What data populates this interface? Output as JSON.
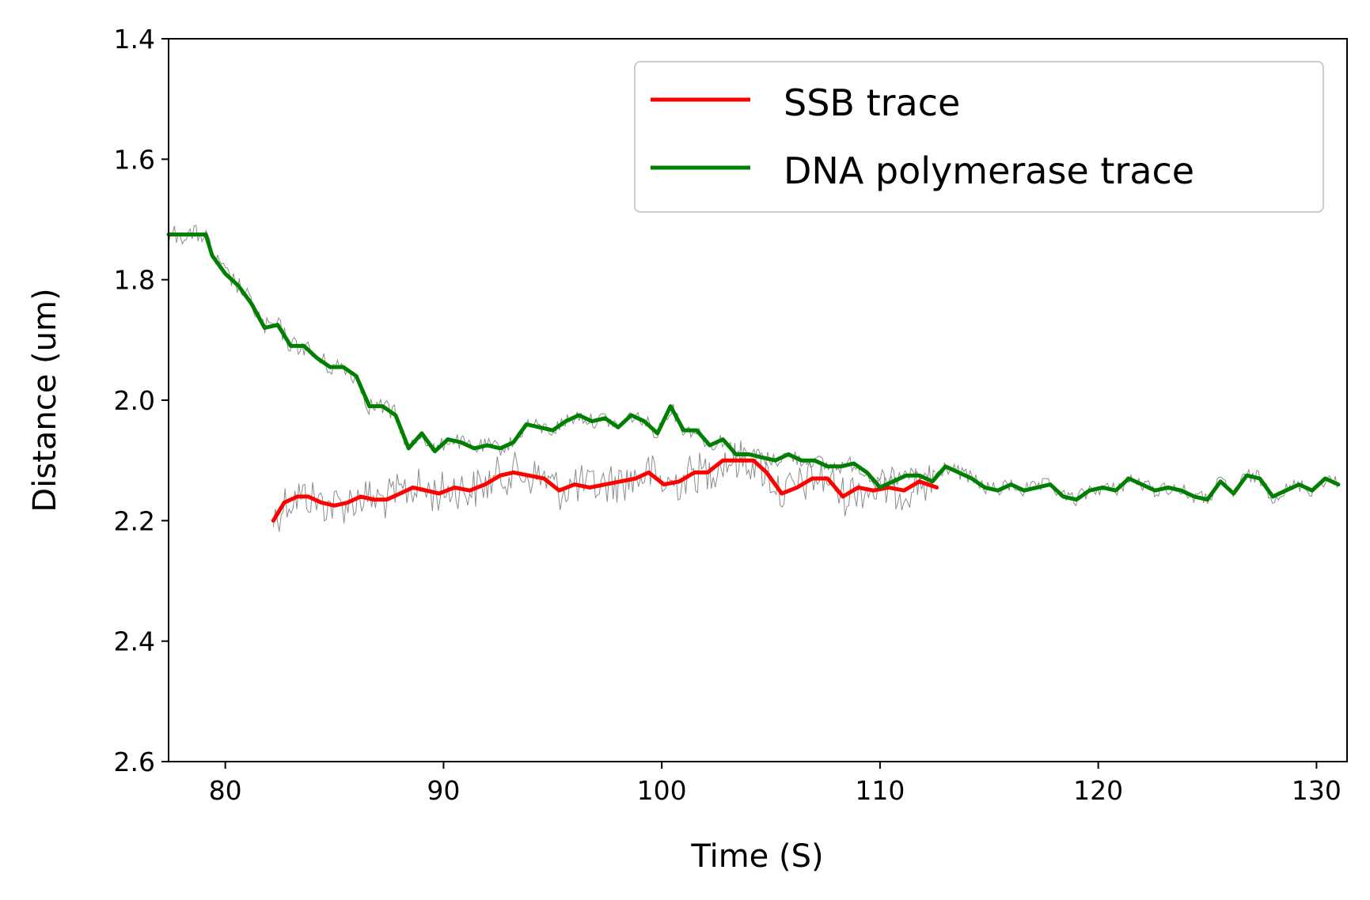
{
  "chart_data": {
    "type": "line",
    "title": "",
    "xlabel": "Time (S)",
    "ylabel": "Distance (um)",
    "xlim": [
      77.4,
      131.4
    ],
    "ylim": [
      2.6,
      1.4
    ],
    "y_inverted": true,
    "xticks": [
      80,
      90,
      100,
      110,
      120,
      130
    ],
    "xtick_labels": [
      "80",
      "90",
      "100",
      "110",
      "120",
      "130"
    ],
    "yticks": [
      1.4,
      1.6,
      1.8,
      2.0,
      2.2,
      2.4,
      2.6
    ],
    "ytick_labels": [
      "1.4",
      "1.6",
      "1.8",
      "2.0",
      "2.2",
      "2.4",
      "2.6"
    ],
    "grid": false,
    "legend_position": "top-right",
    "series": [
      {
        "name": "SSB trace",
        "color": "#ff0000",
        "x": [
          82.2,
          82.7,
          83.3,
          83.8,
          84.4,
          85.0,
          85.6,
          86.2,
          86.8,
          87.4,
          88.0,
          88.6,
          89.2,
          89.8,
          90.5,
          91.2,
          91.9,
          92.6,
          93.2,
          93.9,
          94.6,
          95.3,
          96.0,
          96.7,
          97.4,
          98.1,
          98.8,
          99.4,
          100.1,
          100.8,
          101.5,
          102.1,
          102.8,
          103.5,
          104.2,
          104.8,
          105.5,
          106.2,
          106.9,
          107.6,
          108.3,
          109.0,
          109.7,
          110.4,
          111.1,
          111.8,
          112.6
        ],
        "y": [
          2.2,
          2.17,
          2.16,
          2.16,
          2.17,
          2.175,
          2.17,
          2.16,
          2.165,
          2.165,
          2.155,
          2.145,
          2.15,
          2.155,
          2.145,
          2.15,
          2.14,
          2.125,
          2.12,
          2.125,
          2.13,
          2.15,
          2.14,
          2.145,
          2.14,
          2.135,
          2.13,
          2.12,
          2.14,
          2.135,
          2.12,
          2.12,
          2.1,
          2.1,
          2.1,
          2.12,
          2.155,
          2.145,
          2.13,
          2.13,
          2.16,
          2.145,
          2.15,
          2.145,
          2.15,
          2.135,
          2.145
        ]
      },
      {
        "name": "DNA polymerase trace",
        "color": "#008000",
        "x": [
          77.4,
          78.3,
          79.1,
          79.4,
          80.0,
          80.6,
          81.2,
          81.8,
          82.4,
          83.0,
          83.6,
          84.2,
          84.8,
          85.4,
          86.0,
          86.6,
          87.2,
          87.8,
          88.4,
          89.0,
          89.6,
          90.2,
          90.8,
          91.4,
          92.0,
          92.6,
          93.2,
          93.8,
          94.4,
          95.0,
          95.6,
          96.2,
          96.8,
          97.4,
          98.0,
          98.6,
          99.2,
          99.8,
          100.4,
          101.0,
          101.6,
          102.2,
          102.8,
          103.4,
          104.0,
          104.6,
          105.2,
          105.8,
          106.4,
          107.0,
          107.6,
          108.2,
          108.8,
          109.4,
          110.0,
          110.6,
          111.2,
          111.8,
          112.4,
          113.0,
          113.6,
          114.2,
          114.8,
          115.4,
          116.0,
          116.6,
          117.2,
          117.8,
          118.4,
          119.0,
          119.6,
          120.2,
          120.8,
          121.4,
          122.0,
          122.6,
          123.2,
          123.8,
          124.4,
          125.0,
          125.6,
          126.2,
          126.8,
          127.4,
          128.0,
          128.6,
          129.2,
          129.8,
          130.4,
          131.0
        ],
        "y": [
          1.725,
          1.725,
          1.725,
          1.76,
          1.79,
          1.81,
          1.84,
          1.88,
          1.875,
          1.91,
          1.91,
          1.93,
          1.945,
          1.945,
          1.96,
          2.01,
          2.01,
          2.025,
          2.08,
          2.055,
          2.085,
          2.065,
          2.07,
          2.08,
          2.075,
          2.08,
          2.07,
          2.04,
          2.045,
          2.05,
          2.035,
          2.025,
          2.035,
          2.03,
          2.045,
          2.025,
          2.035,
          2.055,
          2.01,
          2.05,
          2.05,
          2.075,
          2.065,
          2.09,
          2.09,
          2.095,
          2.1,
          2.09,
          2.1,
          2.1,
          2.11,
          2.11,
          2.105,
          2.12,
          2.145,
          2.135,
          2.125,
          2.125,
          2.135,
          2.11,
          2.12,
          2.13,
          2.145,
          2.15,
          2.14,
          2.15,
          2.145,
          2.14,
          2.16,
          2.165,
          2.15,
          2.145,
          2.15,
          2.13,
          2.14,
          2.15,
          2.145,
          2.15,
          2.16,
          2.165,
          2.135,
          2.155,
          2.125,
          2.13,
          2.16,
          2.15,
          2.14,
          2.15,
          2.13,
          2.14
        ]
      }
    ],
    "raw_trace_color": "#808080"
  }
}
